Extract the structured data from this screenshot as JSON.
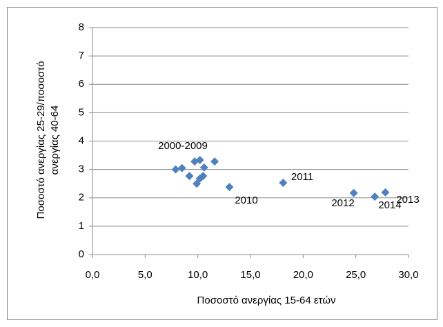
{
  "chart_data": {
    "type": "scatter",
    "x_label": "Ποσοστό ανεργίας 15-64 ετών",
    "y_label": [
      "Ποσοστό ανεργίας 25-29/ποσοστό",
      "ανεργίας 40-64"
    ],
    "series": [
      {
        "name": "Ποσοστό ανεργίας 25-29/ποσοστό ανεργίας 40-64",
        "color": "#4f81bd",
        "x": [
          7.9,
          8.5,
          9.2,
          9.7,
          10.2,
          9.9,
          10.2,
          10.5,
          10.6,
          11.6,
          13.0,
          18.1,
          24.8,
          26.8,
          27.8
        ],
        "values": [
          3.0,
          3.05,
          2.77,
          3.28,
          3.33,
          2.5,
          2.68,
          2.77,
          3.07,
          3.28,
          2.38,
          2.53,
          2.17,
          2.04,
          2.19
        ]
      }
    ],
    "annotations": [
      "2000-2009",
      "2010",
      "2011",
      "2012",
      "2013",
      "2014"
    ],
    "xlim": [
      0,
      30
    ],
    "xticks": [
      {
        "value": 0,
        "label": "0,0"
      },
      {
        "value": 5,
        "label": "5,0"
      },
      {
        "value": 10,
        "label": "10,0"
      },
      {
        "value": 15,
        "label": "15,0"
      },
      {
        "value": 20,
        "label": "20,0"
      },
      {
        "value": 25,
        "label": "25,0"
      },
      {
        "value": 30,
        "label": "30,0"
      }
    ],
    "ylim": [
      0,
      8
    ],
    "yticks": [
      0,
      1,
      2,
      3,
      4,
      5,
      6,
      7,
      8
    ],
    "grid": true,
    "legend": false
  }
}
